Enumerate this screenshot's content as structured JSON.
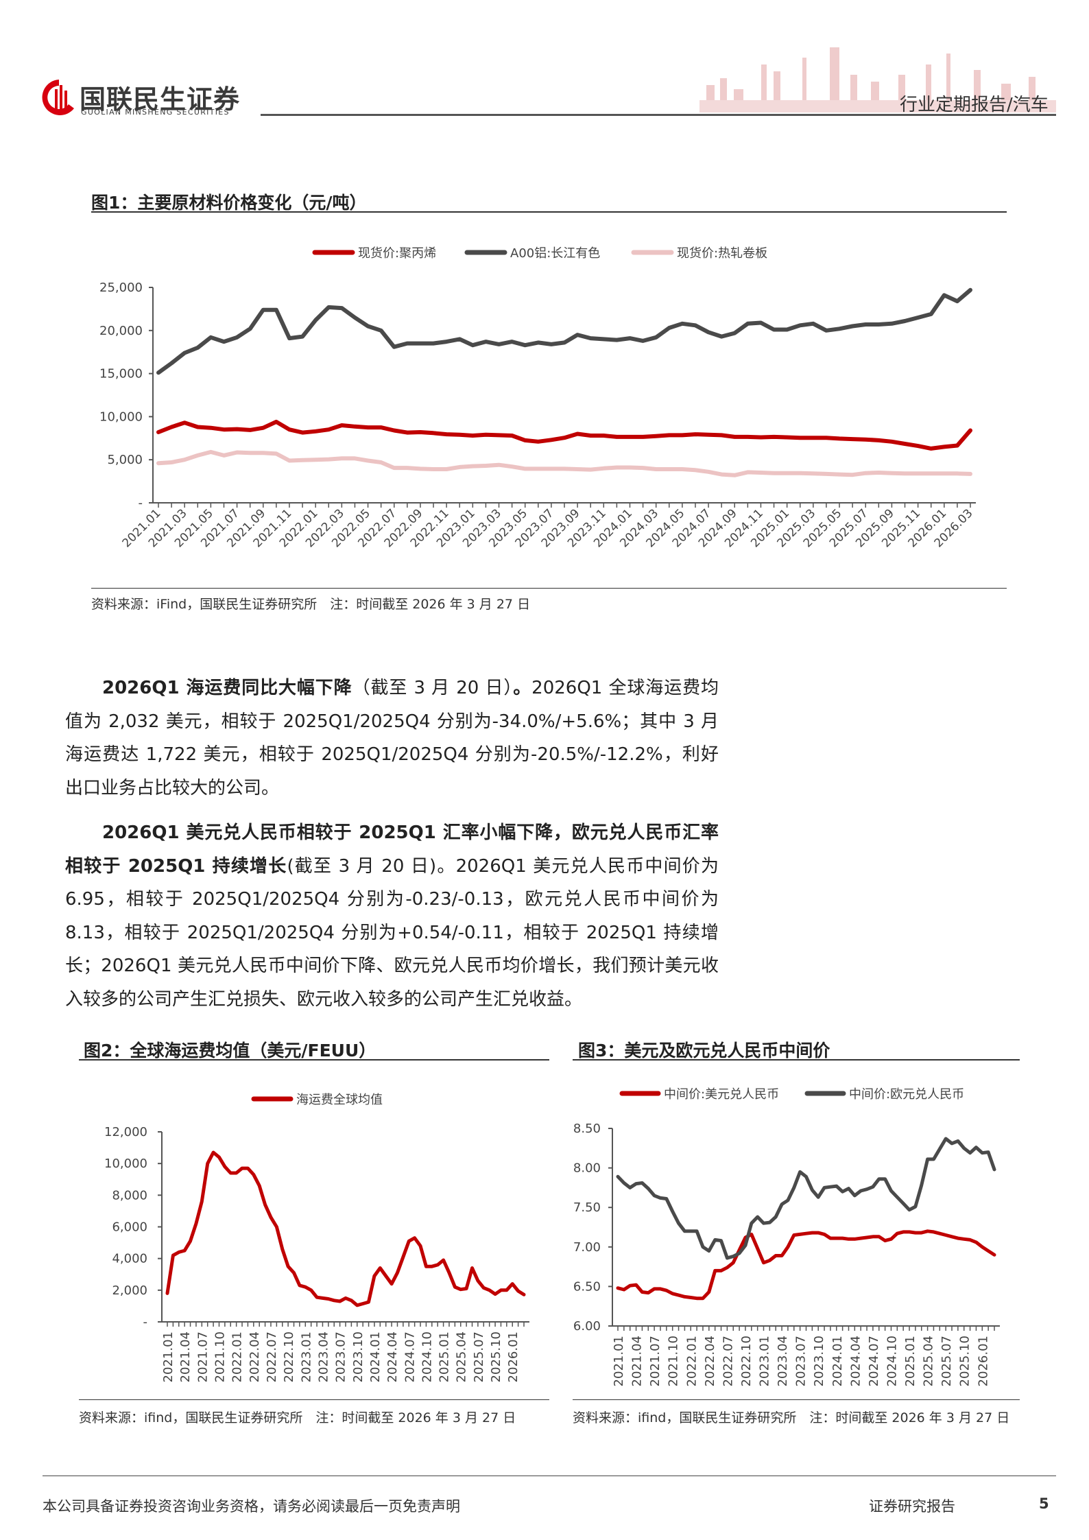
{
  "header": {
    "logo_cn": "国联民生证券",
    "logo_en": "GUOLIAN MINSHENG SECURITIES",
    "report_type": "行业定期报告/汽车",
    "brand_color": "#d7000f"
  },
  "figure1": {
    "title": "图1：主要原材料价格变化（元/吨）",
    "source": "资料来源：iFind，国联民生证券研究所　注：时间截至 2026 年 3 月 27 日"
  },
  "paragraph1": {
    "bold": "2026Q1 海运费同比大幅下降",
    "normal1": "（截至 3 月 20 日）",
    "bold2": "。",
    "normal2": "2026Q1 全球海运费均值为 2,032 美元，相较于 2025Q1/2025Q4 分别为-34.0%/+5.6%；其中 3 月海运费达 1,722 美元，相较于 2025Q1/2025Q4 分别为-20.5%/-12.2%，利好出口业务占比较大的公司。"
  },
  "paragraph2": {
    "bold": "2026Q1 美元兑人民币相较于 2025Q1 汇率小幅下降，欧元兑人民币汇率相较于 2025Q1 持续增长",
    "normal": "(截至 3 月 20 日)。2026Q1 美元兑人民币中间价为 6.95，相较于 2025Q1/2025Q4 分别为-0.23/-0.13，欧元兑人民币中间价为 8.13，相较于 2025Q1/2025Q4 分别为+0.54/-0.11，相较于 2025Q1 持续增长；2026Q1 美元兑人民币中间价下降、欧元兑人民币均价增长，我们预计美元收入较多的公司产生汇兑损失、欧元收入较多的公司产生汇兑收益。"
  },
  "figure2": {
    "title": "图2：全球海运费均值（美元/FEUU）",
    "source": "资料来源：ifind，国联民生证券研究所　注：时间截至 2026 年 3 月 27 日"
  },
  "figure3": {
    "title": "图3：美元及欧元兑人民币中间价",
    "source": "资料来源：ifind，国联民生证券研究所　注：时间截至 2026 年 3 月 27 日"
  },
  "footer": {
    "disclaimer": "本公司具备证券投资咨询业务资格，请务必阅读最后一页免责声明",
    "report_label": "证券研究报告",
    "page_number": "5"
  },
  "chart_data": [
    {
      "type": "line",
      "title": "",
      "x": [
        "2021.01",
        "2021.02",
        "2021.03",
        "2021.04",
        "2021.05",
        "2021.06",
        "2021.07",
        "2021.08",
        "2021.09",
        "2021.10",
        "2021.11",
        "2021.12",
        "2022.01",
        "2022.02",
        "2022.03",
        "2022.04",
        "2022.05",
        "2022.06",
        "2022.07",
        "2022.08",
        "2022.09",
        "2022.10",
        "2022.11",
        "2022.12",
        "2023.01",
        "2023.02",
        "2023.03",
        "2023.04",
        "2023.05",
        "2023.06",
        "2023.07",
        "2023.08",
        "2023.09",
        "2023.10",
        "2023.11",
        "2023.12",
        "2024.01",
        "2024.02",
        "2024.03",
        "2024.04",
        "2024.05",
        "2024.06",
        "2024.07",
        "2024.08",
        "2024.09",
        "2024.10",
        "2024.11",
        "2024.12",
        "2025.01",
        "2025.02",
        "2025.03",
        "2025.04",
        "2025.05",
        "2025.06",
        "2025.07",
        "2025.08",
        "2025.09",
        "2025.10",
        "2025.11",
        "2025.12",
        "2026.01",
        "2026.02",
        "2026.03"
      ],
      "x_tick_labels": [
        "2021.01",
        "2021.03",
        "2021.05",
        "2021.07",
        "2021.09",
        "2021.11",
        "2022.01",
        "2022.03",
        "2022.05",
        "2022.07",
        "2022.09",
        "2022.11",
        "2023.01",
        "2023.03",
        "2023.05",
        "2023.07",
        "2023.09",
        "2023.11",
        "2024.01",
        "2024.03",
        "2024.05",
        "2024.07",
        "2024.09",
        "2024.11",
        "2025.01",
        "2025.03",
        "2025.05",
        "2025.07",
        "2025.09",
        "2025.11",
        "2026.01",
        "2026.03"
      ],
      "ylim": [
        0,
        25000
      ],
      "y_tick_labels": [
        "-",
        "5,000",
        "10,000",
        "15,000",
        "20,000",
        "25,000"
      ],
      "grid": false,
      "legend": "top",
      "series": [
        {
          "name": "现货价:聚丙烯",
          "color": "#c00000",
          "values": [
            8200,
            8800,
            9300,
            8800,
            8700,
            8500,
            8550,
            8450,
            8700,
            9400,
            8500,
            8150,
            8300,
            8500,
            9000,
            8850,
            8750,
            8750,
            8400,
            8150,
            8200,
            8100,
            7950,
            7900,
            7800,
            7900,
            7850,
            7800,
            7250,
            7100,
            7300,
            7550,
            8000,
            7800,
            7800,
            7650,
            7650,
            7650,
            7750,
            7850,
            7850,
            7950,
            7900,
            7850,
            7650,
            7650,
            7600,
            7650,
            7600,
            7550,
            7550,
            7550,
            7450,
            7400,
            7350,
            7250,
            7100,
            6850,
            6600,
            6300,
            6500,
            6650,
            8400
          ]
        },
        {
          "name": "A00铝:长江有色",
          "color": "#4a4a4a",
          "values": [
            15100,
            16200,
            17400,
            18000,
            19200,
            18700,
            19200,
            20200,
            22400,
            22400,
            19100,
            19300,
            21200,
            22700,
            22600,
            21500,
            20500,
            20000,
            18100,
            18500,
            18500,
            18500,
            18700,
            19000,
            18300,
            18700,
            18400,
            18700,
            18300,
            18600,
            18400,
            18600,
            19500,
            19100,
            19000,
            18900,
            19100,
            18800,
            19200,
            20300,
            20800,
            20600,
            19800,
            19300,
            19700,
            20800,
            20900,
            20100,
            20100,
            20600,
            20800,
            20000,
            20200,
            20500,
            20700,
            20700,
            20800,
            21100,
            21500,
            21900,
            24100,
            23400,
            24700
          ]
        },
        {
          "name": "现货价:热轧卷板",
          "color": "#ecc3c3",
          "values": [
            4600,
            4700,
            5000,
            5500,
            5900,
            5500,
            5850,
            5800,
            5800,
            5700,
            4900,
            4950,
            5000,
            5050,
            5150,
            5150,
            4900,
            4700,
            4050,
            4050,
            3950,
            3900,
            3900,
            4150,
            4250,
            4300,
            4400,
            4200,
            3950,
            3950,
            3950,
            3950,
            3900,
            3850,
            4000,
            4100,
            4100,
            4050,
            3900,
            3900,
            3900,
            3800,
            3600,
            3300,
            3200,
            3550,
            3500,
            3450,
            3450,
            3450,
            3400,
            3350,
            3300,
            3250,
            3450,
            3500,
            3450,
            3400,
            3400,
            3400,
            3400,
            3400,
            3350
          ]
        }
      ]
    },
    {
      "type": "line",
      "title": "",
      "x": [
        "2021.01",
        "2021.02",
        "2021.03",
        "2021.04",
        "2021.05",
        "2021.06",
        "2021.07",
        "2021.08",
        "2021.09",
        "2021.10",
        "2021.11",
        "2021.12",
        "2022.01",
        "2022.02",
        "2022.03",
        "2022.04",
        "2022.05",
        "2022.06",
        "2022.07",
        "2022.08",
        "2022.09",
        "2022.10",
        "2022.11",
        "2022.12",
        "2023.01",
        "2023.02",
        "2023.03",
        "2023.04",
        "2023.05",
        "2023.06",
        "2023.07",
        "2023.08",
        "2023.09",
        "2023.10",
        "2023.11",
        "2023.12",
        "2024.01",
        "2024.02",
        "2024.03",
        "2024.04",
        "2024.05",
        "2024.06",
        "2024.07",
        "2024.08",
        "2024.09",
        "2024.10",
        "2024.11",
        "2024.12",
        "2025.01",
        "2025.02",
        "2025.03",
        "2025.04",
        "2025.05",
        "2025.06",
        "2025.07",
        "2025.08",
        "2025.09",
        "2025.10",
        "2025.11",
        "2025.12",
        "2026.01",
        "2026.02",
        "2026.03"
      ],
      "x_tick_labels": [
        "2021.01",
        "2021.04",
        "2021.07",
        "2021.10",
        "2022.01",
        "2022.04",
        "2022.07",
        "2022.10",
        "2023.01",
        "2023.04",
        "2023.07",
        "2023.10",
        "2024.01",
        "2024.04",
        "2024.07",
        "2024.10",
        "2025.01",
        "2025.04",
        "2025.07",
        "2025.10",
        "2026.01"
      ],
      "ylim": [
        0,
        12000
      ],
      "y_tick_labels": [
        "-",
        "2,000",
        "4,000",
        "6,000",
        "8,000",
        "10,000",
        "12,000"
      ],
      "grid": false,
      "legend": "top",
      "series": [
        {
          "name": "海运费全球均值",
          "color": "#c00000",
          "values": [
            1800,
            4200,
            4400,
            4500,
            5100,
            6200,
            7600,
            10000,
            10700,
            10400,
            9800,
            9400,
            9400,
            9700,
            9700,
            9300,
            8600,
            7400,
            6600,
            6000,
            4600,
            3500,
            3100,
            2300,
            2200,
            2000,
            1550,
            1500,
            1450,
            1350,
            1300,
            1500,
            1350,
            1050,
            1150,
            1250,
            2900,
            3400,
            2900,
            2400,
            3100,
            4100,
            5100,
            5300,
            4800,
            3500,
            3500,
            3600,
            3900,
            3100,
            2200,
            2050,
            2100,
            3400,
            2600,
            2150,
            2000,
            1750,
            2000,
            2000,
            2400,
            1950,
            1722
          ]
        }
      ]
    },
    {
      "type": "line",
      "title": "",
      "x": [
        "2021.01",
        "2021.02",
        "2021.03",
        "2021.04",
        "2021.05",
        "2021.06",
        "2021.07",
        "2021.08",
        "2021.09",
        "2021.10",
        "2021.11",
        "2021.12",
        "2022.01",
        "2022.02",
        "2022.03",
        "2022.04",
        "2022.05",
        "2022.06",
        "2022.07",
        "2022.08",
        "2022.09",
        "2022.10",
        "2022.11",
        "2022.12",
        "2023.01",
        "2023.02",
        "2023.03",
        "2023.04",
        "2023.05",
        "2023.06",
        "2023.07",
        "2023.08",
        "2023.09",
        "2023.10",
        "2023.11",
        "2023.12",
        "2024.01",
        "2024.02",
        "2024.03",
        "2024.04",
        "2024.05",
        "2024.06",
        "2024.07",
        "2024.08",
        "2024.09",
        "2024.10",
        "2024.11",
        "2024.12",
        "2025.01",
        "2025.02",
        "2025.03",
        "2025.04",
        "2025.05",
        "2025.06",
        "2025.07",
        "2025.08",
        "2025.09",
        "2025.10",
        "2025.11",
        "2025.12",
        "2026.01",
        "2026.02",
        "2026.03"
      ],
      "x_tick_labels": [
        "2021.01",
        "2021.04",
        "2021.07",
        "2021.10",
        "2022.01",
        "2022.04",
        "2022.07",
        "2022.10",
        "2023.01",
        "2023.04",
        "2023.07",
        "2023.10",
        "2024.01",
        "2024.04",
        "2024.07",
        "2024.10",
        "2025.01",
        "2025.04",
        "2025.07",
        "2025.10",
        "2026.01"
      ],
      "ylim": [
        6.0,
        8.5
      ],
      "y_tick_labels": [
        "6.00",
        "6.50",
        "7.00",
        "7.50",
        "8.00",
        "8.50"
      ],
      "grid": false,
      "legend": "top",
      "series": [
        {
          "name": "中间价:美元兑人民币",
          "color": "#c00000",
          "values": [
            6.48,
            6.46,
            6.51,
            6.52,
            6.43,
            6.42,
            6.47,
            6.47,
            6.45,
            6.41,
            6.39,
            6.37,
            6.36,
            6.35,
            6.35,
            6.43,
            6.7,
            6.7,
            6.74,
            6.8,
            6.96,
            7.12,
            7.16,
            6.98,
            6.8,
            6.83,
            6.89,
            6.89,
            7.0,
            7.15,
            7.16,
            7.17,
            7.18,
            7.18,
            7.16,
            7.11,
            7.11,
            7.11,
            7.1,
            7.1,
            7.11,
            7.12,
            7.13,
            7.13,
            7.08,
            7.1,
            7.17,
            7.19,
            7.19,
            7.18,
            7.18,
            7.2,
            7.19,
            7.17,
            7.15,
            7.13,
            7.11,
            7.1,
            7.09,
            7.06,
            7.0,
            6.95,
            6.9
          ]
        },
        {
          "name": "中间价:欧元兑人民币",
          "color": "#4a4a4a",
          "values": [
            7.89,
            7.81,
            7.75,
            7.8,
            7.81,
            7.74,
            7.65,
            7.62,
            7.61,
            7.45,
            7.3,
            7.2,
            7.2,
            7.2,
            7.0,
            6.95,
            7.09,
            7.08,
            6.86,
            6.88,
            6.92,
            7.02,
            7.3,
            7.38,
            7.3,
            7.31,
            7.38,
            7.54,
            7.59,
            7.75,
            7.95,
            7.89,
            7.72,
            7.63,
            7.75,
            7.76,
            7.77,
            7.7,
            7.74,
            7.65,
            7.71,
            7.73,
            7.76,
            7.86,
            7.86,
            7.71,
            7.63,
            7.55,
            7.47,
            7.51,
            7.78,
            8.11,
            8.11,
            8.24,
            8.37,
            8.31,
            8.34,
            8.25,
            8.19,
            8.26,
            8.19,
            8.2,
            7.98
          ]
        }
      ]
    }
  ]
}
